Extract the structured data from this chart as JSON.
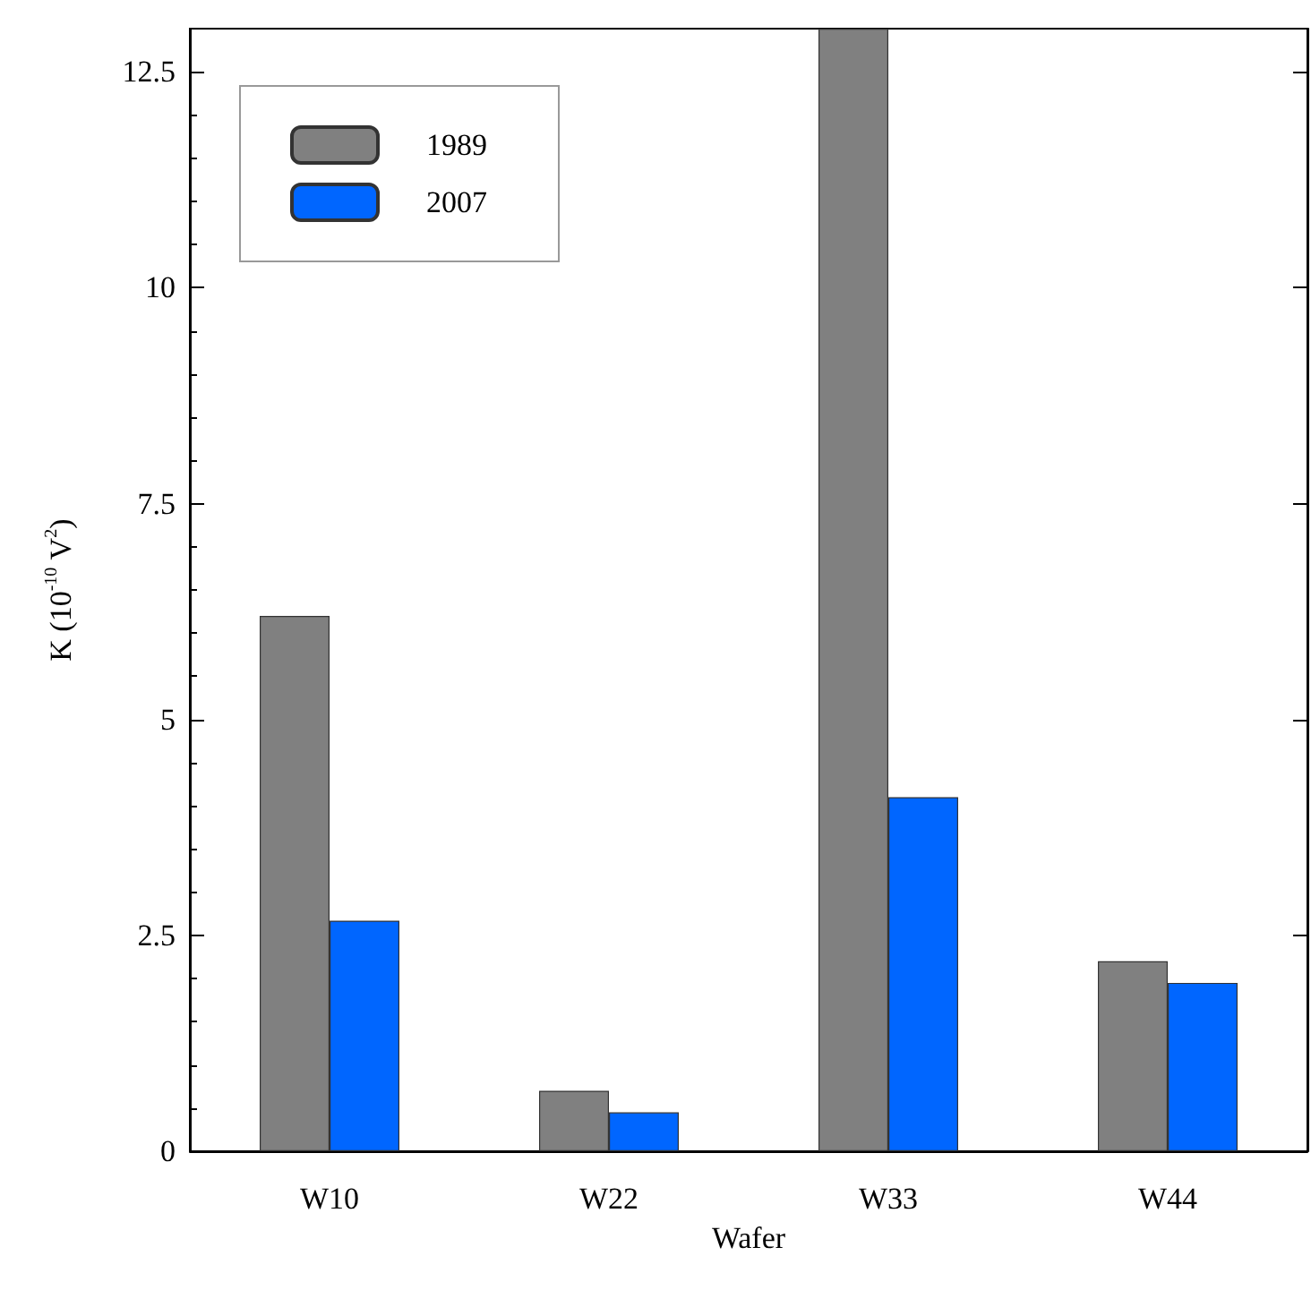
{
  "chart_data": {
    "type": "bar",
    "xlabel": "Wafer",
    "ylabel": "K (10$^{-10}$ V$^{2}$)",
    "categories": [
      "W10",
      "W22",
      "W33",
      "W44"
    ],
    "series": [
      {
        "name": "1989",
        "color": "#808080",
        "values": [
          6.2,
          0.7,
          13,
          2.2
        ]
      },
      {
        "name": "2007",
        "color": "#0066ff",
        "values": [
          2.67,
          0.45,
          4.1,
          1.95
        ]
      }
    ],
    "ylim": [
      0,
      13
    ],
    "yticks": [
      0,
      2.5,
      5,
      7.5,
      10,
      12.5
    ],
    "legend": "top left",
    "grid": false
  }
}
